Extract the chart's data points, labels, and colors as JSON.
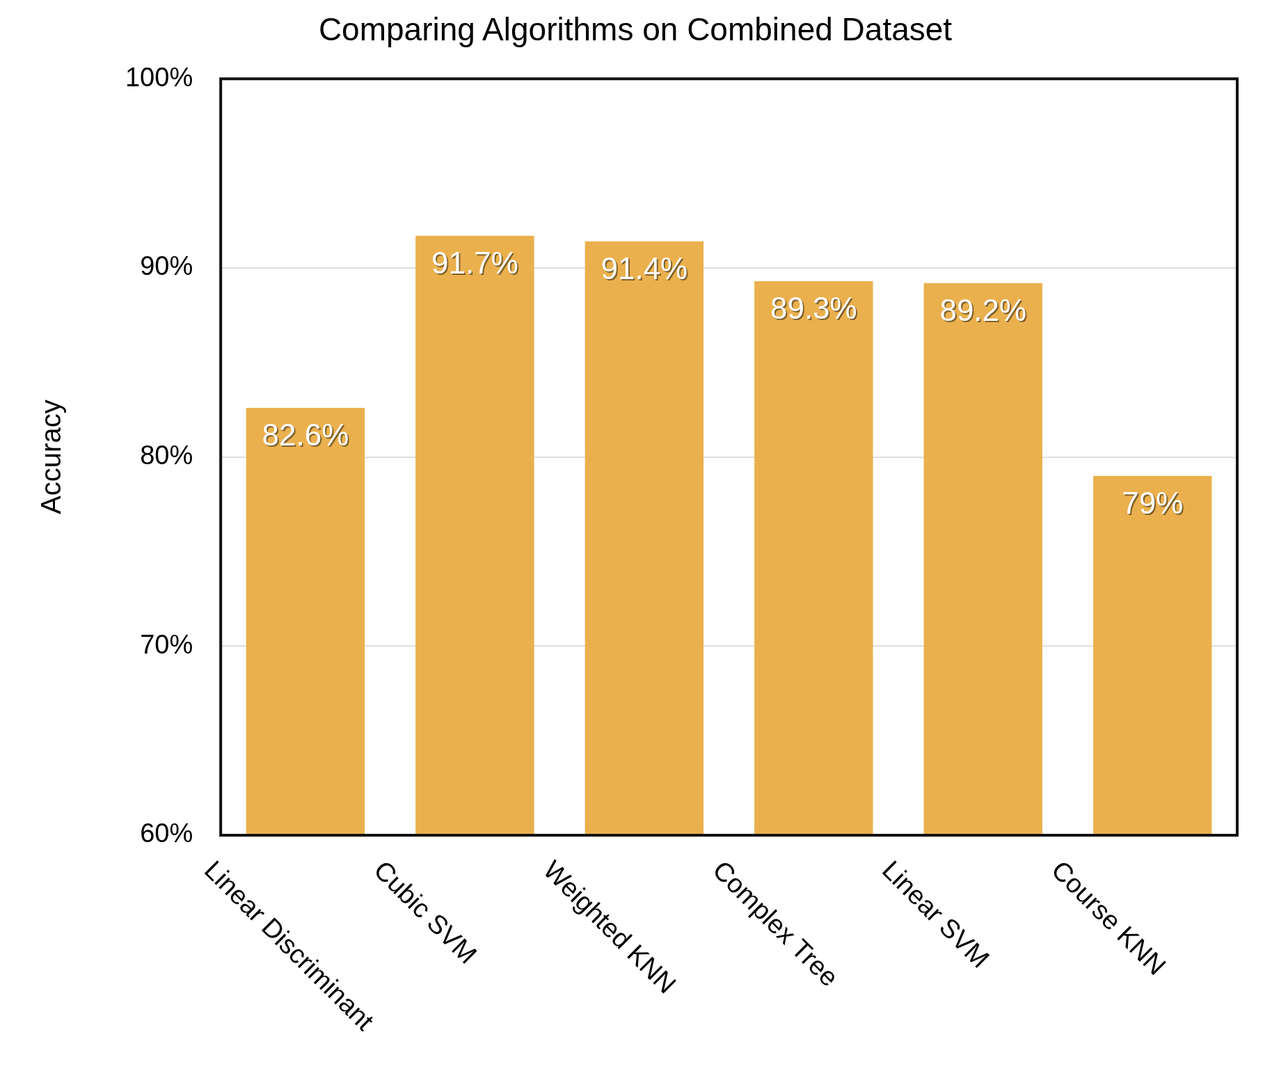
{
  "chart_data": {
    "type": "bar",
    "title": "Comparing Algorithms on Combined Dataset",
    "ylabel": "Accuracy",
    "categories": [
      "Linear Discriminant",
      "Cubic SVM",
      "Weighted KNN",
      "Complex Tree",
      "Linear SVM",
      "Course KNN"
    ],
    "values": [
      82.6,
      91.7,
      91.4,
      89.3,
      89.2,
      79
    ],
    "value_labels": [
      "82.6%",
      "91.7%",
      "91.4%",
      "89.3%",
      "89.2%",
      "79%"
    ],
    "color": "#eab04d",
    "ylim": [
      60,
      100
    ],
    "yticks": [
      {
        "value": 60,
        "label": "60%"
      },
      {
        "value": 70,
        "label": "70%"
      },
      {
        "value": 80,
        "label": "80%"
      },
      {
        "value": 90,
        "label": "90%"
      },
      {
        "value": 100,
        "label": "100%"
      }
    ],
    "grid": "y"
  }
}
